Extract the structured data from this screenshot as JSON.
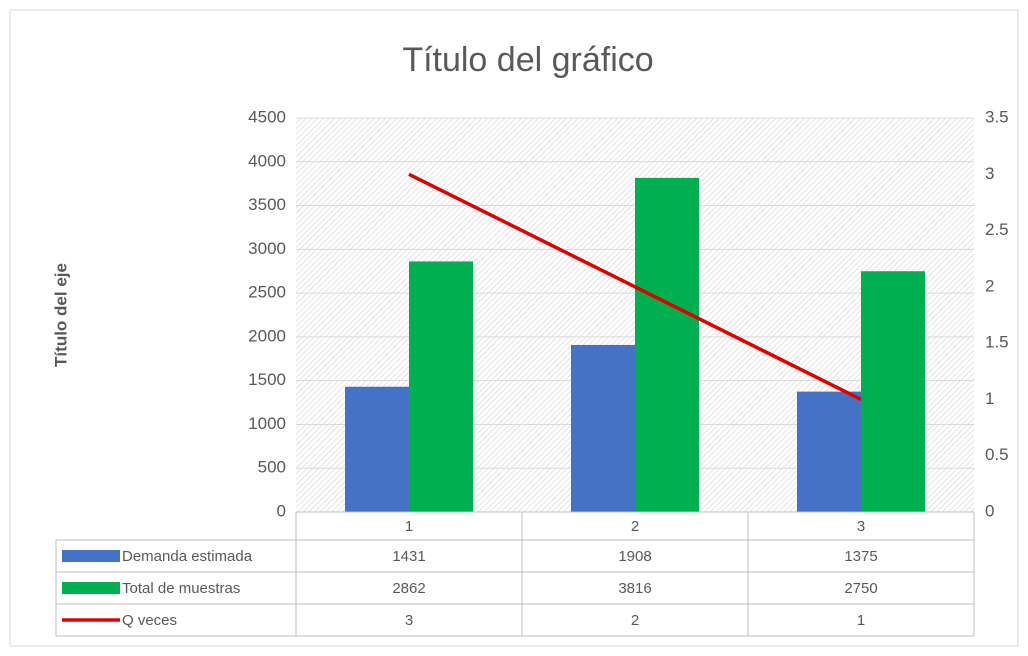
{
  "chart_data": {
    "type": "bar",
    "title": "Título del gráfico",
    "y_axis_title": "Título del eje",
    "categories": [
      "1",
      "2",
      "3"
    ],
    "series": [
      {
        "name": "Demanda estimada",
        "color": "#4472c4",
        "values": [
          1431,
          1908,
          1375
        ]
      },
      {
        "name": "Total de muestras",
        "color": "#00b050",
        "values": [
          2862,
          3816,
          2750
        ]
      },
      {
        "name": "Q veces",
        "color": "#e00000",
        "type": "line",
        "axis": "y2",
        "values": [
          3,
          2,
          1
        ]
      }
    ],
    "ylim": [
      0,
      4500
    ],
    "yticks": [
      0,
      500,
      1000,
      1500,
      2000,
      2500,
      3000,
      3500,
      4000,
      4500
    ],
    "y2lim": [
      0,
      3.5
    ],
    "y2ticks": [
      0,
      0.5,
      1,
      1.5,
      2,
      2.5,
      3,
      3.5
    ],
    "grid": true,
    "data_table": true
  }
}
